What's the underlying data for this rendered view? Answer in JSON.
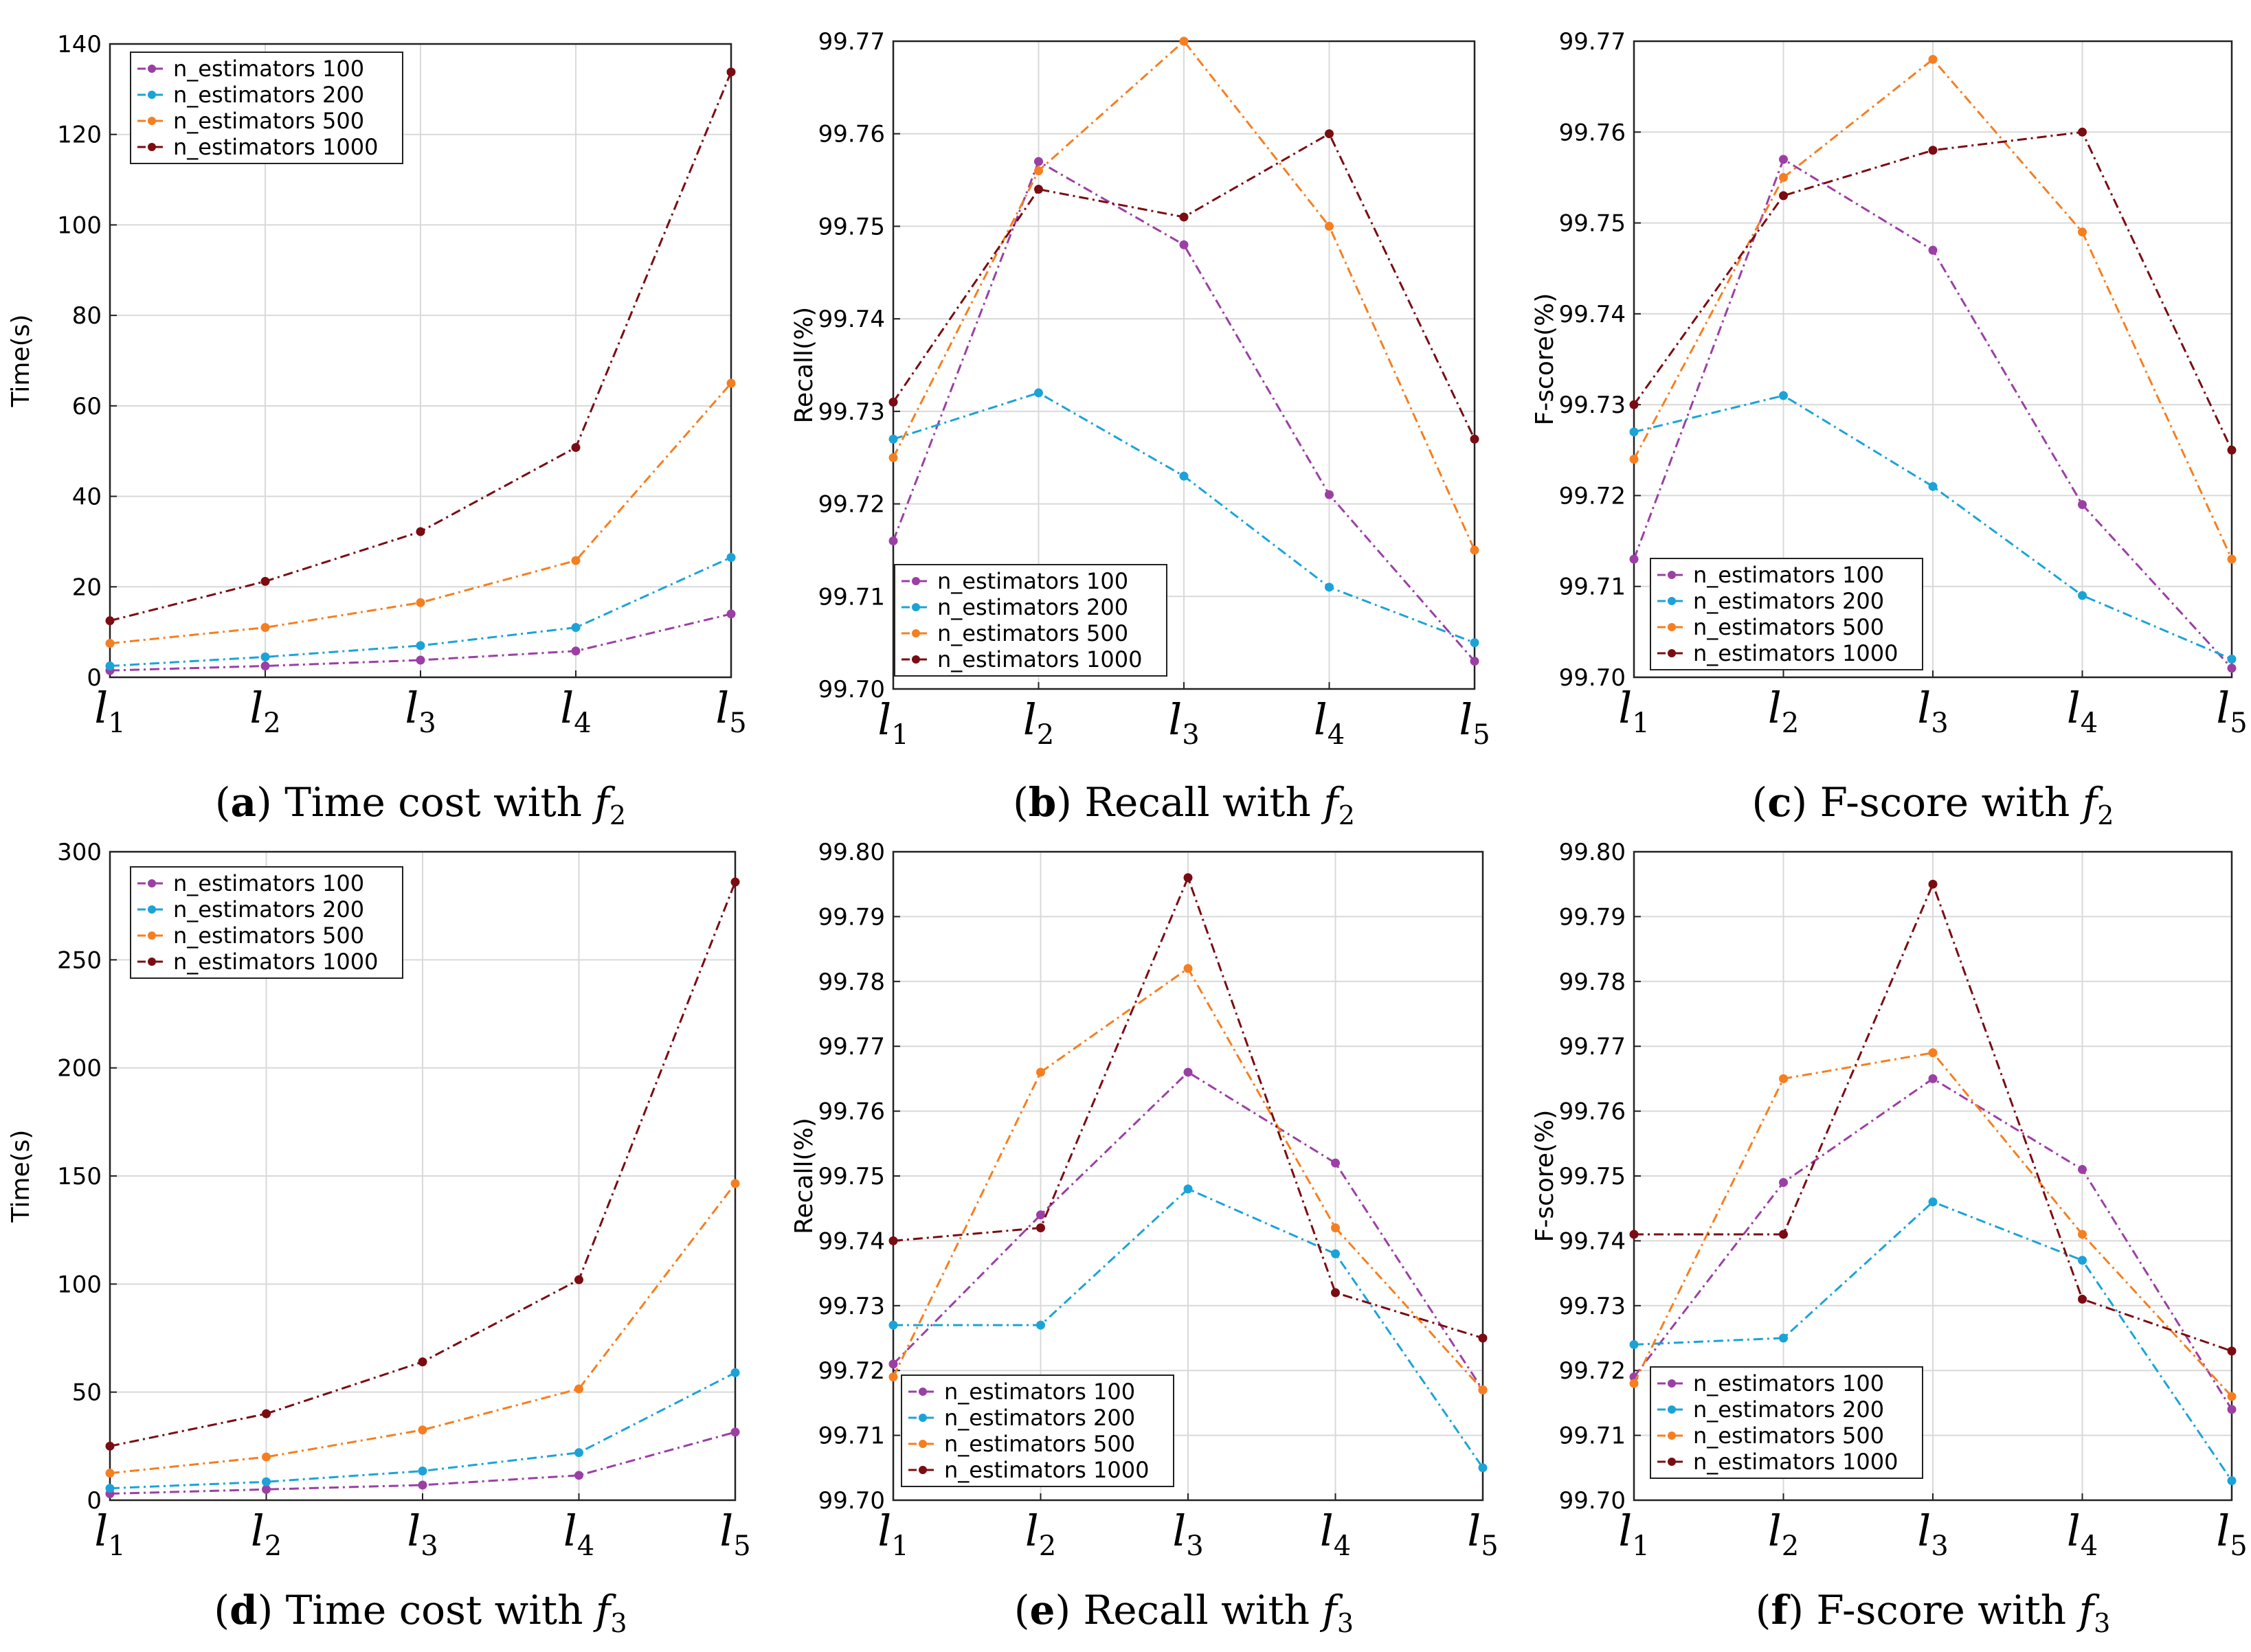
{
  "figure": {
    "series_colors": {
      "n_estimators 100": "#9b3fa5",
      "n_estimators 200": "#1ba3d8",
      "n_estimators 500": "#f57f20",
      "n_estimators 1000": "#7a0c12"
    }
  },
  "chart_data": [
    {
      "id": "a",
      "type": "line",
      "caption": {
        "letter": "a",
        "text": "Time cost with",
        "f": "f",
        "sub": "2"
      },
      "ylabel": "Time(s)",
      "xlabel_var": "l",
      "categories": [
        "1",
        "2",
        "3",
        "4",
        "5"
      ],
      "ylim": [
        0,
        140
      ],
      "yticks": [
        "0",
        "20",
        "40",
        "60",
        "80",
        "100",
        "120",
        "140"
      ],
      "legend_position": "top-left",
      "grid": true,
      "series": [
        {
          "name": "n_estimators 100",
          "values": [
            1.5,
            2.5,
            3.8,
            5.8,
            14.0
          ]
        },
        {
          "name": "n_estimators 200",
          "values": [
            2.5,
            4.5,
            7.0,
            11.0,
            26.5
          ]
        },
        {
          "name": "n_estimators 500",
          "values": [
            7.5,
            11.0,
            16.5,
            25.8,
            65.0
          ]
        },
        {
          "name": "n_estimators 1000",
          "values": [
            12.5,
            21.2,
            32.2,
            50.8,
            133.8
          ]
        }
      ]
    },
    {
      "id": "b",
      "type": "line",
      "caption": {
        "letter": "b",
        "text": "Recall with",
        "f": "f",
        "sub": "2"
      },
      "ylabel": "Recall(%)",
      "xlabel_var": "l",
      "categories": [
        "1",
        "2",
        "3",
        "4",
        "5"
      ],
      "ylim": [
        99.7,
        99.77
      ],
      "yticks": [
        "99.70",
        "99.71",
        "99.72",
        "99.73",
        "99.74",
        "99.75",
        "99.76",
        "99.77"
      ],
      "legend_position": "bottom-left",
      "grid": true,
      "series": [
        {
          "name": "n_estimators 100",
          "values": [
            99.716,
            99.757,
            99.748,
            99.721,
            99.703
          ]
        },
        {
          "name": "n_estimators 200",
          "values": [
            99.727,
            99.732,
            99.723,
            99.711,
            99.705
          ]
        },
        {
          "name": "n_estimators 500",
          "values": [
            99.725,
            99.756,
            99.77,
            99.75,
            99.715
          ]
        },
        {
          "name": "n_estimators 1000",
          "values": [
            99.731,
            99.754,
            99.751,
            99.76,
            99.727
          ]
        }
      ]
    },
    {
      "id": "c",
      "type": "line",
      "caption": {
        "letter": "c",
        "text": "F-score with",
        "f": "f",
        "sub": "2"
      },
      "ylabel": "F-score(%)",
      "xlabel_var": "l",
      "categories": [
        "1",
        "2",
        "3",
        "4",
        "5"
      ],
      "ylim": [
        99.7,
        99.77
      ],
      "yticks": [
        "99.70",
        "99.71",
        "99.72",
        "99.73",
        "99.74",
        "99.75",
        "99.76",
        "99.77"
      ],
      "legend_position": "bottom-left",
      "grid": true,
      "series": [
        {
          "name": "n_estimators 100",
          "values": [
            99.713,
            99.757,
            99.747,
            99.719,
            99.701
          ]
        },
        {
          "name": "n_estimators 200",
          "values": [
            99.727,
            99.731,
            99.721,
            99.709,
            99.702
          ]
        },
        {
          "name": "n_estimators 500",
          "values": [
            99.724,
            99.755,
            99.768,
            99.749,
            99.713
          ]
        },
        {
          "name": "n_estimators 1000",
          "values": [
            99.73,
            99.753,
            99.758,
            99.76,
            99.725
          ]
        }
      ]
    },
    {
      "id": "d",
      "type": "line",
      "caption": {
        "letter": "d",
        "text": "Time cost with",
        "f": "f",
        "sub": "3"
      },
      "ylabel": "Time(s)",
      "xlabel_var": "l",
      "categories": [
        "1",
        "2",
        "3",
        "4",
        "5"
      ],
      "ylim": [
        0,
        300
      ],
      "yticks": [
        "0",
        "50",
        "100",
        "150",
        "200",
        "250",
        "300"
      ],
      "legend_position": "top-left",
      "grid": true,
      "series": [
        {
          "name": "n_estimators 100",
          "values": [
            3,
            5,
            7,
            11.5,
            31.5
          ]
        },
        {
          "name": "n_estimators 200",
          "values": [
            5.5,
            8.5,
            13.5,
            22,
            59
          ]
        },
        {
          "name": "n_estimators 500",
          "values": [
            12.5,
            20,
            32.5,
            51.5,
            146.5
          ]
        },
        {
          "name": "n_estimators 1000",
          "values": [
            25,
            40,
            64,
            102,
            286
          ]
        }
      ]
    },
    {
      "id": "e",
      "type": "line",
      "caption": {
        "letter": "e",
        "text": "Recall with",
        "f": "f",
        "sub": "3"
      },
      "ylabel": "Recall(%)",
      "xlabel_var": "l",
      "categories": [
        "1",
        "2",
        "3",
        "4",
        "5"
      ],
      "ylim": [
        99.7,
        99.8
      ],
      "yticks": [
        "99.70",
        "99.71",
        "99.72",
        "99.73",
        "99.74",
        "99.75",
        "99.76",
        "99.77",
        "99.78",
        "99.79",
        "99.80"
      ],
      "legend_position": "bottom-left",
      "grid": true,
      "series": [
        {
          "name": "n_estimators 100",
          "values": [
            99.721,
            99.744,
            99.766,
            99.752,
            99.717
          ]
        },
        {
          "name": "n_estimators 200",
          "values": [
            99.727,
            99.727,
            99.748,
            99.738,
            99.705
          ]
        },
        {
          "name": "n_estimators 500",
          "values": [
            99.719,
            99.766,
            99.782,
            99.742,
            99.717
          ]
        },
        {
          "name": "n_estimators 1000",
          "values": [
            99.74,
            99.742,
            99.796,
            99.732,
            99.725
          ]
        }
      ]
    },
    {
      "id": "f",
      "type": "line",
      "caption": {
        "letter": "f",
        "text": "F-score with",
        "f": "f",
        "sub": "3"
      },
      "ylabel": "F-score(%)",
      "xlabel_var": "l",
      "categories": [
        "1",
        "2",
        "3",
        "4",
        "5"
      ],
      "ylim": [
        99.7,
        99.8
      ],
      "yticks": [
        "99.70",
        "99.71",
        "99.72",
        "99.73",
        "99.74",
        "99.75",
        "99.76",
        "99.77",
        "99.78",
        "99.79",
        "99.80"
      ],
      "legend_position": "bottom-left",
      "grid": true,
      "series": [
        {
          "name": "n_estimators 100",
          "values": [
            99.719,
            99.749,
            99.765,
            99.751,
            99.714
          ]
        },
        {
          "name": "n_estimators 200",
          "values": [
            99.724,
            99.725,
            99.746,
            99.737,
            99.703
          ]
        },
        {
          "name": "n_estimators 500",
          "values": [
            99.718,
            99.765,
            99.769,
            99.741,
            99.716
          ]
        },
        {
          "name": "n_estimators 1000",
          "values": [
            99.741,
            99.741,
            99.795,
            99.731,
            99.723
          ]
        }
      ]
    }
  ]
}
